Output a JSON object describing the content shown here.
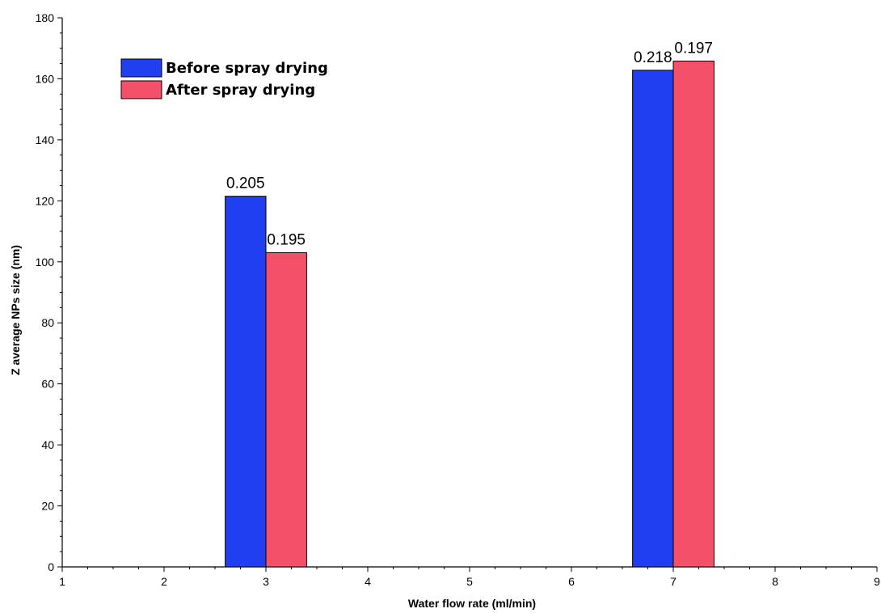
{
  "chart_data": {
    "type": "bar",
    "xlabel": "Water flow rate (ml/min)",
    "ylabel": "Z average NPs size (nm)",
    "xlim": [
      1,
      9
    ],
    "ylim": [
      0,
      180
    ],
    "xticks": [
      "1",
      "2",
      "3",
      "4",
      "5",
      "6",
      "7",
      "8",
      "9"
    ],
    "yticks": [
      "0",
      "20",
      "40",
      "60",
      "80",
      "100",
      "120",
      "140",
      "160",
      "180"
    ],
    "grid": false,
    "legend_position": "top-left",
    "categories": [
      "3",
      "7"
    ],
    "series": [
      {
        "name": "Before spray drying",
        "color": "#1f3ff0",
        "values": [
          121.5,
          162.8
        ],
        "labels": [
          "0.205",
          "0.218"
        ]
      },
      {
        "name": "After spray drying",
        "color": "#f5506a",
        "values": [
          103,
          165.8
        ],
        "labels": [
          "0.195",
          "0.197"
        ]
      }
    ]
  }
}
